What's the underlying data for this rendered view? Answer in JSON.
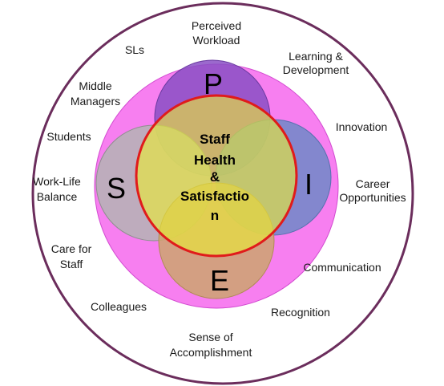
{
  "outer_labels": {
    "perceived_workload": [
      "Perceived",
      "Workload"
    ],
    "sls": [
      "SLs"
    ],
    "learning_development": [
      "Learning &",
      "Development"
    ],
    "middle_managers": [
      "Middle",
      "Managers"
    ],
    "innovation": [
      "Innovation"
    ],
    "students": [
      "Students"
    ],
    "work_life_balance": [
      "Work-Life",
      "Balance"
    ],
    "career_opportunities": [
      "Career",
      "Opportunities"
    ],
    "care_for_staff": [
      "Care for",
      "Staff"
    ],
    "communication": [
      "Communication"
    ],
    "colleagues": [
      "Colleagues"
    ],
    "recognition": [
      "Recognition"
    ],
    "sense_of_accomplishment": [
      "Sense of",
      "Accomplishment"
    ]
  },
  "letters": {
    "p": "P",
    "s": "S",
    "i": "I",
    "e": "E"
  },
  "center": [
    "Staff",
    "Health",
    "&",
    "Satisfactio",
    "n"
  ],
  "colors": {
    "outer_ring": "#6b2d5c",
    "pink_disc": "#f77ff0",
    "p_circle": "#8a4fc4",
    "s_circle": "#b4b4b4",
    "i_circle": "#6f88c8",
    "e_circle": "#cca46e",
    "center_fill": "#eaed33",
    "center_border": "#e01b1b"
  }
}
